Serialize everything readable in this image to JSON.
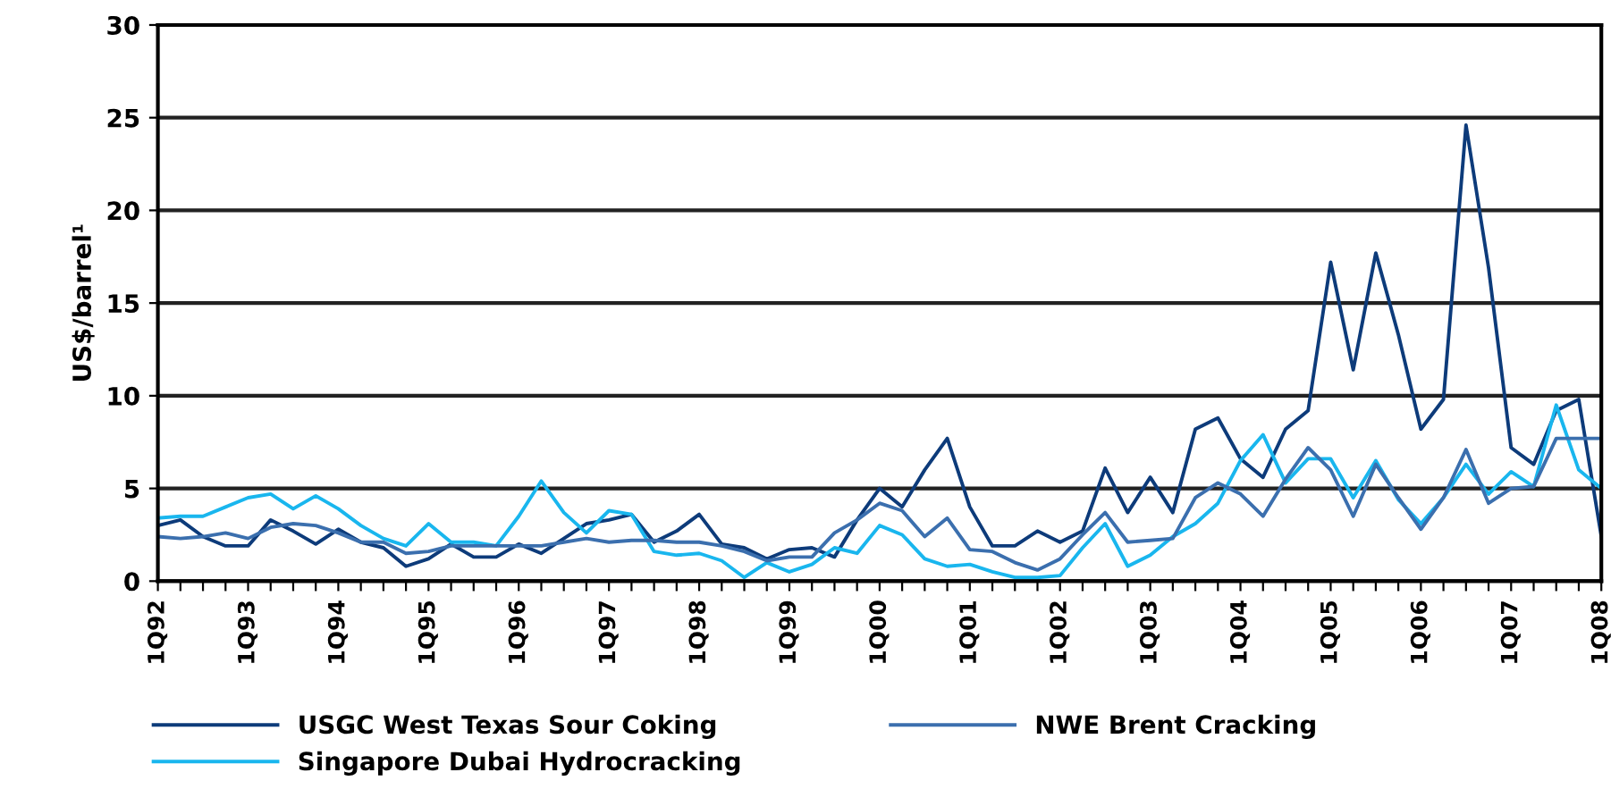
{
  "chart_data": {
    "type": "line",
    "ylabel": "US$/barrel¹",
    "categories": [
      "1Q92",
      null,
      null,
      null,
      "1Q93",
      null,
      null,
      null,
      "1Q94",
      null,
      null,
      null,
      "1Q95",
      null,
      null,
      null,
      "1Q96",
      null,
      null,
      null,
      "1Q97",
      null,
      null,
      null,
      "1Q98",
      null,
      null,
      null,
      "1Q99",
      null,
      null,
      null,
      "1Q00",
      null,
      null,
      null,
      "1Q01",
      null,
      null,
      null,
      "1Q02",
      null,
      null,
      null,
      "1Q03",
      null,
      null,
      null,
      "1Q04",
      null,
      null,
      null,
      "1Q05",
      null,
      null,
      null,
      "1Q06",
      null,
      null,
      null,
      "1Q07",
      null,
      null,
      null,
      "1Q08"
    ],
    "series": [
      {
        "name": "USGC West Texas Sour Coking",
        "color": "#0d3b7a",
        "values": [
          3.0,
          3.3,
          2.4,
          1.9,
          1.9,
          3.3,
          2.7,
          2.0,
          2.8,
          2.1,
          1.8,
          0.8,
          1.2,
          2.0,
          1.3,
          1.3,
          2.0,
          1.5,
          2.3,
          3.1,
          3.3,
          3.6,
          2.1,
          2.7,
          3.6,
          2.0,
          1.8,
          1.2,
          1.7,
          1.8,
          1.3,
          3.3,
          5.0,
          4.0,
          6.0,
          7.7,
          4.0,
          1.9,
          1.9,
          2.7,
          2.1,
          2.7,
          6.1,
          3.7,
          5.6,
          3.7,
          8.2,
          8.8,
          6.6,
          5.6,
          8.2,
          9.2,
          17.2,
          11.4,
          17.7,
          13.3,
          8.2,
          9.8,
          24.6,
          16.9,
          7.2,
          6.3,
          9.2,
          9.8,
          2.4
        ]
      },
      {
        "name": "Singapore Dubai Hydrocracking",
        "color": "#19b6ee",
        "values": [
          3.4,
          3.5,
          3.5,
          4.0,
          4.5,
          4.7,
          3.9,
          4.6,
          3.9,
          3.0,
          2.3,
          1.9,
          3.1,
          2.1,
          2.1,
          1.9,
          3.5,
          5.4,
          3.7,
          2.6,
          3.8,
          3.6,
          1.6,
          1.4,
          1.5,
          1.1,
          0.2,
          1.0,
          0.5,
          0.9,
          1.8,
          1.5,
          3.0,
          2.5,
          1.2,
          0.8,
          0.9,
          0.5,
          0.2,
          0.2,
          0.3,
          1.8,
          3.1,
          0.8,
          1.4,
          2.4,
          3.1,
          4.2,
          6.5,
          7.9,
          5.3,
          6.6,
          6.6,
          4.5,
          6.5,
          4.4,
          3.1,
          4.5,
          6.3,
          4.7,
          5.9,
          5.1,
          9.5,
          6.0,
          5.0
        ]
      },
      {
        "name": "NWE Brent Cracking",
        "color": "#3b6fae",
        "values": [
          2.4,
          2.3,
          2.4,
          2.6,
          2.3,
          2.9,
          3.1,
          3.0,
          2.6,
          2.1,
          2.1,
          1.5,
          1.6,
          1.9,
          1.9,
          1.9,
          1.9,
          1.9,
          2.1,
          2.3,
          2.1,
          2.2,
          2.2,
          2.1,
          2.1,
          1.9,
          1.6,
          1.1,
          1.3,
          1.3,
          2.6,
          3.3,
          4.2,
          3.8,
          2.4,
          3.4,
          1.7,
          1.6,
          1.0,
          0.6,
          1.2,
          2.5,
          3.7,
          2.1,
          2.2,
          2.3,
          4.5,
          5.3,
          4.7,
          3.5,
          5.5,
          7.2,
          6.0,
          3.5,
          6.3,
          4.5,
          2.8,
          4.5,
          7.1,
          4.2,
          5.0,
          5.1,
          7.7,
          7.7,
          7.7
        ]
      }
    ],
    "ylim": [
      0,
      30
    ],
    "yticks": [
      0,
      5,
      10,
      15,
      20,
      25,
      30
    ],
    "grid": "y",
    "legend": "bottom",
    "marker": "none",
    "line_style": "solid"
  }
}
